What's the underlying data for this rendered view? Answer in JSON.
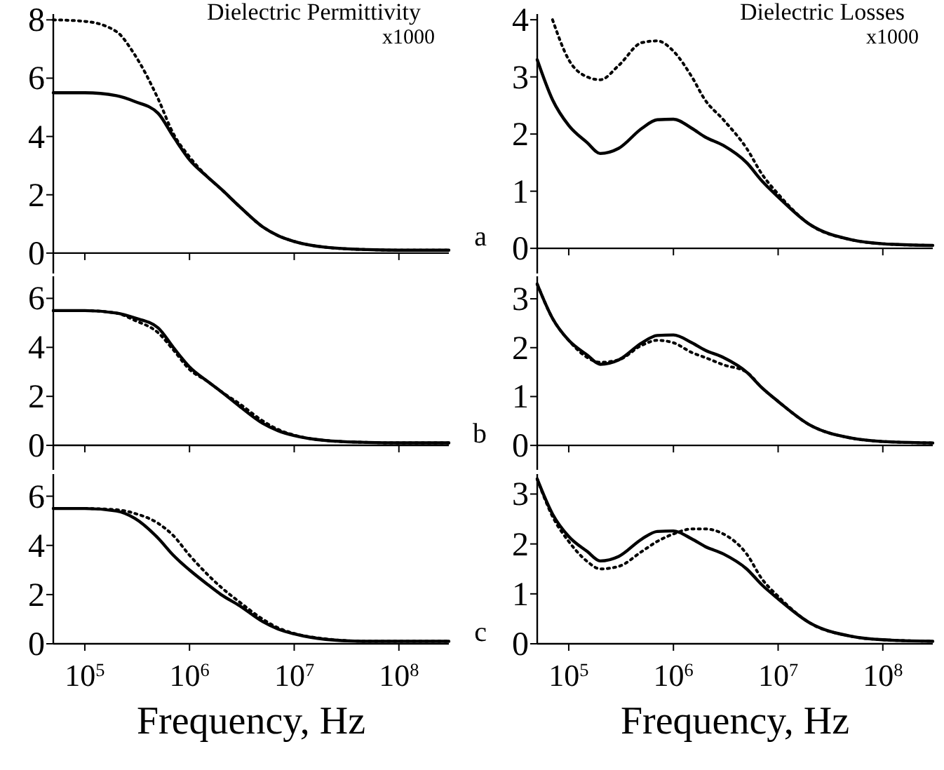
{
  "chart_data": [
    {
      "type": "line",
      "title": "Dielectric Permittivity",
      "subtitle": "x1000",
      "log": "x",
      "tick_labels": "y",
      "xlim": [
        50000,
        300000000
      ],
      "xticks": [
        {
          "value": 100000,
          "label": null
        },
        {
          "value": 1000000,
          "label": null
        },
        {
          "value": 10000000,
          "label": null
        },
        {
          "value": 100000000,
          "label": null
        }
      ],
      "ylim": [
        -0.7,
        8.2
      ],
      "yticks": [
        0,
        2,
        4,
        6,
        8
      ],
      "x": [
        50000,
        100000,
        200000,
        300000,
        500000,
        700000,
        1000000,
        1500000,
        2000000,
        3000000,
        5000000,
        7000000,
        10000000,
        20000000,
        50000000,
        100000000,
        300000000
      ],
      "series": [
        {
          "color": "#000000",
          "line_style": "solid",
          "values": [
            5.5,
            5.5,
            5.4,
            5.2,
            4.8,
            4.0,
            3.2,
            2.6,
            2.2,
            1.6,
            0.9,
            0.6,
            0.4,
            0.2,
            0.12,
            0.1,
            0.1
          ]
        },
        {
          "color": "#000000",
          "line_style": "dotted",
          "values": [
            8.0,
            7.95,
            7.6,
            6.8,
            5.3,
            4.1,
            3.3,
            2.6,
            2.2,
            1.6,
            0.9,
            0.6,
            0.4,
            0.2,
            0.12,
            0.1,
            0.1
          ]
        }
      ]
    },
    {
      "type": "line",
      "title": "Dielectric Losses",
      "subtitle": "x1000",
      "annotations": [
        "a"
      ],
      "log": "x",
      "tick_labels": "y",
      "xlim": [
        50000,
        300000000
      ],
      "xticks": [
        {
          "value": 100000,
          "label": null
        },
        {
          "value": 1000000,
          "label": null
        },
        {
          "value": 10000000,
          "label": null
        },
        {
          "value": 100000000,
          "label": null
        }
      ],
      "ylim": [
        -0.44,
        4.1
      ],
      "yticks": [
        0,
        1,
        2,
        3,
        4
      ],
      "x": [
        50000,
        70000,
        100000,
        150000,
        200000,
        300000,
        500000,
        700000,
        1000000,
        1500000,
        2000000,
        3000000,
        5000000,
        7000000,
        10000000,
        20000000,
        50000000,
        100000000,
        300000000
      ],
      "series": [
        {
          "color": "#000000",
          "line_style": "solid",
          "values": [
            3.3,
            2.6,
            2.15,
            1.85,
            1.66,
            1.75,
            2.1,
            2.25,
            2.26,
            2.1,
            1.95,
            1.8,
            1.5,
            1.18,
            0.9,
            0.42,
            0.15,
            0.08,
            0.05
          ]
        },
        {
          "color": "#000000",
          "line_style": "dotted",
          "values": [
            null,
            4.0,
            3.3,
            3.0,
            2.95,
            3.2,
            3.6,
            3.63,
            3.45,
            3.0,
            2.6,
            2.25,
            1.75,
            1.3,
            0.95,
            0.42,
            0.15,
            0.08,
            0.05
          ]
        }
      ]
    },
    {
      "type": "line",
      "log": "x",
      "tick_labels": "y",
      "xlim": [
        50000,
        300000000
      ],
      "xticks": [
        {
          "value": 100000,
          "label": null
        },
        {
          "value": 1000000,
          "label": null
        },
        {
          "value": 10000000,
          "label": null
        },
        {
          "value": 100000000,
          "label": null
        }
      ],
      "ylim": [
        -1,
        6.9
      ],
      "yticks": [
        0,
        2,
        4,
        6
      ],
      "x": [
        50000,
        100000,
        200000,
        300000,
        500000,
        700000,
        1000000,
        1500000,
        2000000,
        3000000,
        5000000,
        7000000,
        10000000,
        20000000,
        50000000,
        100000000,
        300000000
      ],
      "series": [
        {
          "color": "#000000",
          "line_style": "solid",
          "values": [
            5.5,
            5.5,
            5.4,
            5.2,
            4.8,
            4.0,
            3.2,
            2.6,
            2.2,
            1.6,
            0.9,
            0.6,
            0.4,
            0.2,
            0.12,
            0.1,
            0.1
          ]
        },
        {
          "color": "#000000",
          "line_style": "dotted",
          "values": [
            5.5,
            5.5,
            5.4,
            5.1,
            4.6,
            3.9,
            3.1,
            2.6,
            2.2,
            1.7,
            1.0,
            0.65,
            0.42,
            0.2,
            0.12,
            0.1,
            0.1
          ]
        }
      ]
    },
    {
      "type": "line",
      "annotations": [
        "b"
      ],
      "log": "x",
      "tick_labels": "y",
      "xlim": [
        50000,
        300000000
      ],
      "xticks": [
        {
          "value": 100000,
          "label": null
        },
        {
          "value": 1000000,
          "label": null
        },
        {
          "value": 10000000,
          "label": null
        },
        {
          "value": 100000000,
          "label": null
        }
      ],
      "ylim": [
        -0.5,
        3.46
      ],
      "yticks": [
        0,
        1,
        2,
        3
      ],
      "x": [
        50000,
        70000,
        100000,
        150000,
        200000,
        300000,
        500000,
        700000,
        1000000,
        1500000,
        2000000,
        3000000,
        5000000,
        7000000,
        10000000,
        20000000,
        50000000,
        100000000,
        300000000
      ],
      "series": [
        {
          "color": "#000000",
          "line_style": "solid",
          "values": [
            3.3,
            2.6,
            2.15,
            1.85,
            1.66,
            1.75,
            2.1,
            2.25,
            2.26,
            2.1,
            1.95,
            1.8,
            1.5,
            1.18,
            0.9,
            0.42,
            0.15,
            0.08,
            0.05
          ]
        },
        {
          "color": "#000000",
          "line_style": "dotted",
          "values": [
            3.3,
            2.6,
            2.15,
            1.8,
            1.7,
            1.75,
            2.05,
            2.15,
            2.1,
            1.9,
            1.8,
            1.65,
            1.5,
            1.18,
            0.9,
            0.42,
            0.15,
            0.08,
            0.05
          ]
        }
      ]
    },
    {
      "type": "line",
      "xlabel": "Frequency, Hz",
      "log": "x",
      "xlim": [
        50000,
        300000000
      ],
      "xticks": [
        {
          "value": 100000,
          "label": "10$^{5}$"
        },
        {
          "value": 1000000,
          "label": "10$^{6}$"
        },
        {
          "value": 10000000,
          "label": "10$^{7}$"
        },
        {
          "value": 100000000,
          "label": "10$^{8}$"
        }
      ],
      "ylim": [
        0,
        6.9
      ],
      "yticks": [
        0,
        2,
        4,
        6
      ],
      "x": [
        50000,
        100000,
        200000,
        300000,
        500000,
        700000,
        1000000,
        1500000,
        2000000,
        3000000,
        5000000,
        7000000,
        10000000,
        20000000,
        50000000,
        100000000,
        300000000
      ],
      "series": [
        {
          "color": "#000000",
          "line_style": "solid",
          "values": [
            5.5,
            5.5,
            5.4,
            5.1,
            4.3,
            3.6,
            3.0,
            2.4,
            2.0,
            1.55,
            0.9,
            0.6,
            0.4,
            0.18,
            0.1,
            0.1,
            0.1
          ]
        },
        {
          "color": "#000000",
          "line_style": "dotted",
          "values": [
            5.5,
            5.5,
            5.45,
            5.3,
            4.9,
            4.4,
            3.6,
            2.8,
            2.3,
            1.7,
            1.0,
            0.65,
            0.42,
            0.2,
            0.1,
            0.1,
            0.1
          ]
        }
      ]
    },
    {
      "type": "line",
      "xlabel": "Frequency, Hz",
      "annotations": [
        "c"
      ],
      "log": "x",
      "xlim": [
        50000,
        300000000
      ],
      "xticks": [
        {
          "value": 100000,
          "label": "10$^{5}$"
        },
        {
          "value": 1000000,
          "label": "10$^{6}$"
        },
        {
          "value": 10000000,
          "label": "10$^{7}$"
        },
        {
          "value": 100000000,
          "label": "10$^{8}$"
        }
      ],
      "ylim": [
        0,
        3.4
      ],
      "yticks": [
        0,
        1,
        2,
        3
      ],
      "x": [
        50000,
        70000,
        100000,
        150000,
        200000,
        300000,
        500000,
        700000,
        1000000,
        1500000,
        2000000,
        3000000,
        5000000,
        7000000,
        10000000,
        20000000,
        50000000,
        100000000,
        300000000
      ],
      "series": [
        {
          "color": "#000000",
          "line_style": "solid",
          "values": [
            3.3,
            2.6,
            2.15,
            1.85,
            1.66,
            1.75,
            2.1,
            2.25,
            2.26,
            2.1,
            1.95,
            1.8,
            1.5,
            1.18,
            0.9,
            0.42,
            0.15,
            0.08,
            0.05
          ]
        },
        {
          "color": "#000000",
          "line_style": "dotted",
          "values": [
            3.3,
            2.55,
            2.05,
            1.65,
            1.5,
            1.55,
            1.85,
            2.05,
            2.2,
            2.3,
            2.3,
            2.2,
            1.8,
            1.3,
            0.95,
            0.42,
            0.15,
            0.08,
            0.05
          ]
        }
      ]
    }
  ]
}
